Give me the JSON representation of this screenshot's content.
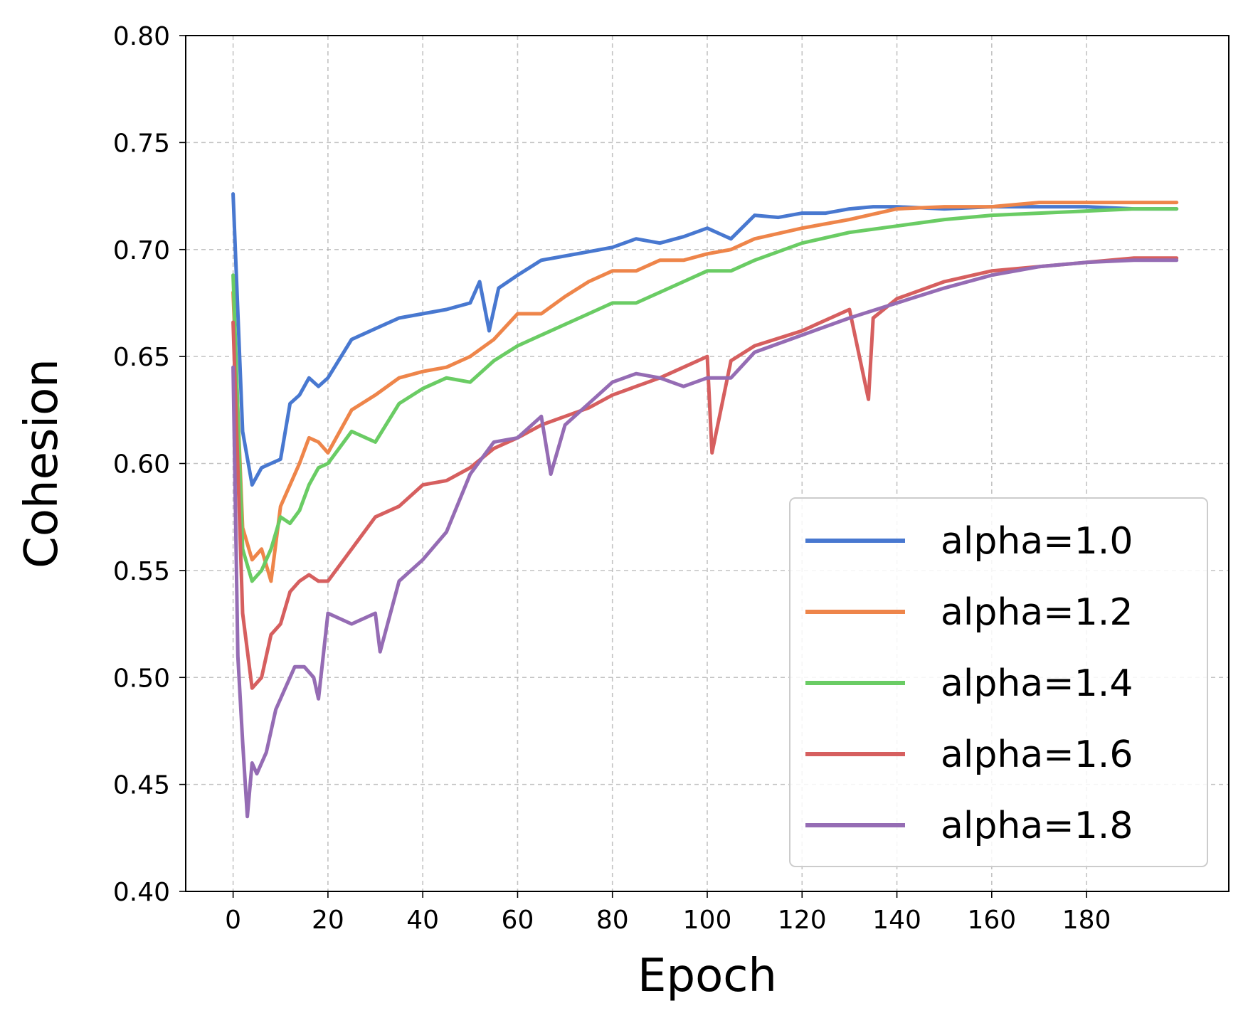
{
  "chart_data": {
    "type": "line",
    "xlabel": "Epoch",
    "ylabel": "Cohesion",
    "xlim": [
      -10,
      210
    ],
    "ylim": [
      0.4,
      0.8
    ],
    "xticks": [
      "0",
      "20",
      "40",
      "60",
      "80",
      "100",
      "120",
      "140",
      "160",
      "180"
    ],
    "yticks": [
      "0.40",
      "0.45",
      "0.50",
      "0.55",
      "0.60",
      "0.65",
      "0.70",
      "0.75",
      "0.80"
    ],
    "grid": true,
    "legend_position": "lower-right",
    "colors": {
      "alpha=1.0": "#4878d0",
      "alpha=1.2": "#ee854a",
      "alpha=1.4": "#6acc64",
      "alpha=1.6": "#d65f5f",
      "alpha=1.8": "#956cb4"
    },
    "series": [
      {
        "name": "alpha=1.0",
        "x": [
          0,
          2,
          4,
          6,
          8,
          10,
          12,
          14,
          16,
          18,
          20,
          25,
          30,
          35,
          40,
          45,
          50,
          52,
          54,
          56,
          60,
          65,
          70,
          75,
          80,
          85,
          90,
          95,
          100,
          105,
          110,
          115,
          120,
          125,
          130,
          135,
          140,
          150,
          160,
          170,
          180,
          190,
          199
        ],
        "y": [
          0.726,
          0.615,
          0.59,
          0.598,
          0.6,
          0.602,
          0.628,
          0.632,
          0.64,
          0.636,
          0.64,
          0.658,
          0.663,
          0.668,
          0.67,
          0.672,
          0.675,
          0.685,
          0.662,
          0.682,
          0.688,
          0.695,
          0.697,
          0.699,
          0.701,
          0.705,
          0.703,
          0.706,
          0.71,
          0.705,
          0.716,
          0.715,
          0.717,
          0.717,
          0.719,
          0.72,
          0.72,
          0.719,
          0.72,
          0.72,
          0.72,
          0.719,
          0.719
        ]
      },
      {
        "name": "alpha=1.2",
        "x": [
          0,
          2,
          4,
          6,
          8,
          10,
          12,
          14,
          16,
          18,
          20,
          25,
          30,
          35,
          40,
          45,
          50,
          55,
          60,
          65,
          70,
          75,
          80,
          85,
          90,
          95,
          100,
          105,
          110,
          120,
          130,
          140,
          150,
          160,
          170,
          180,
          190,
          199
        ],
        "y": [
          0.68,
          0.57,
          0.555,
          0.56,
          0.545,
          0.58,
          0.59,
          0.6,
          0.612,
          0.61,
          0.605,
          0.625,
          0.632,
          0.64,
          0.643,
          0.645,
          0.65,
          0.658,
          0.67,
          0.67,
          0.678,
          0.685,
          0.69,
          0.69,
          0.695,
          0.695,
          0.698,
          0.7,
          0.705,
          0.71,
          0.714,
          0.719,
          0.72,
          0.72,
          0.722,
          0.722,
          0.722,
          0.722
        ]
      },
      {
        "name": "alpha=1.4",
        "x": [
          0,
          2,
          4,
          6,
          8,
          10,
          12,
          14,
          16,
          18,
          20,
          25,
          30,
          35,
          40,
          45,
          50,
          55,
          60,
          65,
          70,
          75,
          80,
          85,
          90,
          95,
          100,
          105,
          110,
          120,
          130,
          140,
          150,
          160,
          170,
          180,
          190,
          199
        ],
        "y": [
          0.688,
          0.56,
          0.545,
          0.55,
          0.56,
          0.575,
          0.572,
          0.578,
          0.59,
          0.598,
          0.6,
          0.615,
          0.61,
          0.628,
          0.635,
          0.64,
          0.638,
          0.648,
          0.655,
          0.66,
          0.665,
          0.67,
          0.675,
          0.675,
          0.68,
          0.685,
          0.69,
          0.69,
          0.695,
          0.703,
          0.708,
          0.711,
          0.714,
          0.716,
          0.717,
          0.718,
          0.719,
          0.719
        ]
      },
      {
        "name": "alpha=1.6",
        "x": [
          0,
          2,
          4,
          6,
          8,
          10,
          12,
          14,
          16,
          18,
          20,
          25,
          30,
          35,
          40,
          45,
          50,
          55,
          60,
          65,
          70,
          75,
          80,
          85,
          90,
          95,
          100,
          101,
          105,
          110,
          120,
          130,
          134,
          135,
          140,
          150,
          160,
          170,
          180,
          190,
          199
        ],
        "y": [
          0.666,
          0.53,
          0.495,
          0.5,
          0.52,
          0.525,
          0.54,
          0.545,
          0.548,
          0.545,
          0.545,
          0.56,
          0.575,
          0.58,
          0.59,
          0.592,
          0.598,
          0.607,
          0.612,
          0.618,
          0.622,
          0.626,
          0.632,
          0.636,
          0.64,
          0.645,
          0.65,
          0.605,
          0.648,
          0.655,
          0.662,
          0.672,
          0.63,
          0.668,
          0.677,
          0.685,
          0.69,
          0.692,
          0.694,
          0.696,
          0.696
        ]
      },
      {
        "name": "alpha=1.8",
        "x": [
          0,
          1,
          2,
          3,
          4,
          5,
          7,
          9,
          11,
          13,
          15,
          17,
          18,
          20,
          25,
          30,
          31,
          35,
          40,
          45,
          50,
          55,
          60,
          65,
          67,
          70,
          75,
          80,
          85,
          90,
          95,
          100,
          105,
          110,
          120,
          130,
          140,
          150,
          160,
          170,
          180,
          190,
          199
        ],
        "y": [
          0.645,
          0.51,
          0.47,
          0.435,
          0.46,
          0.455,
          0.465,
          0.485,
          0.495,
          0.505,
          0.505,
          0.5,
          0.49,
          0.53,
          0.525,
          0.53,
          0.512,
          0.545,
          0.555,
          0.568,
          0.595,
          0.61,
          0.612,
          0.622,
          0.595,
          0.618,
          0.628,
          0.638,
          0.642,
          0.64,
          0.636,
          0.64,
          0.64,
          0.652,
          0.66,
          0.668,
          0.675,
          0.682,
          0.688,
          0.692,
          0.694,
          0.695,
          0.695
        ]
      }
    ]
  }
}
